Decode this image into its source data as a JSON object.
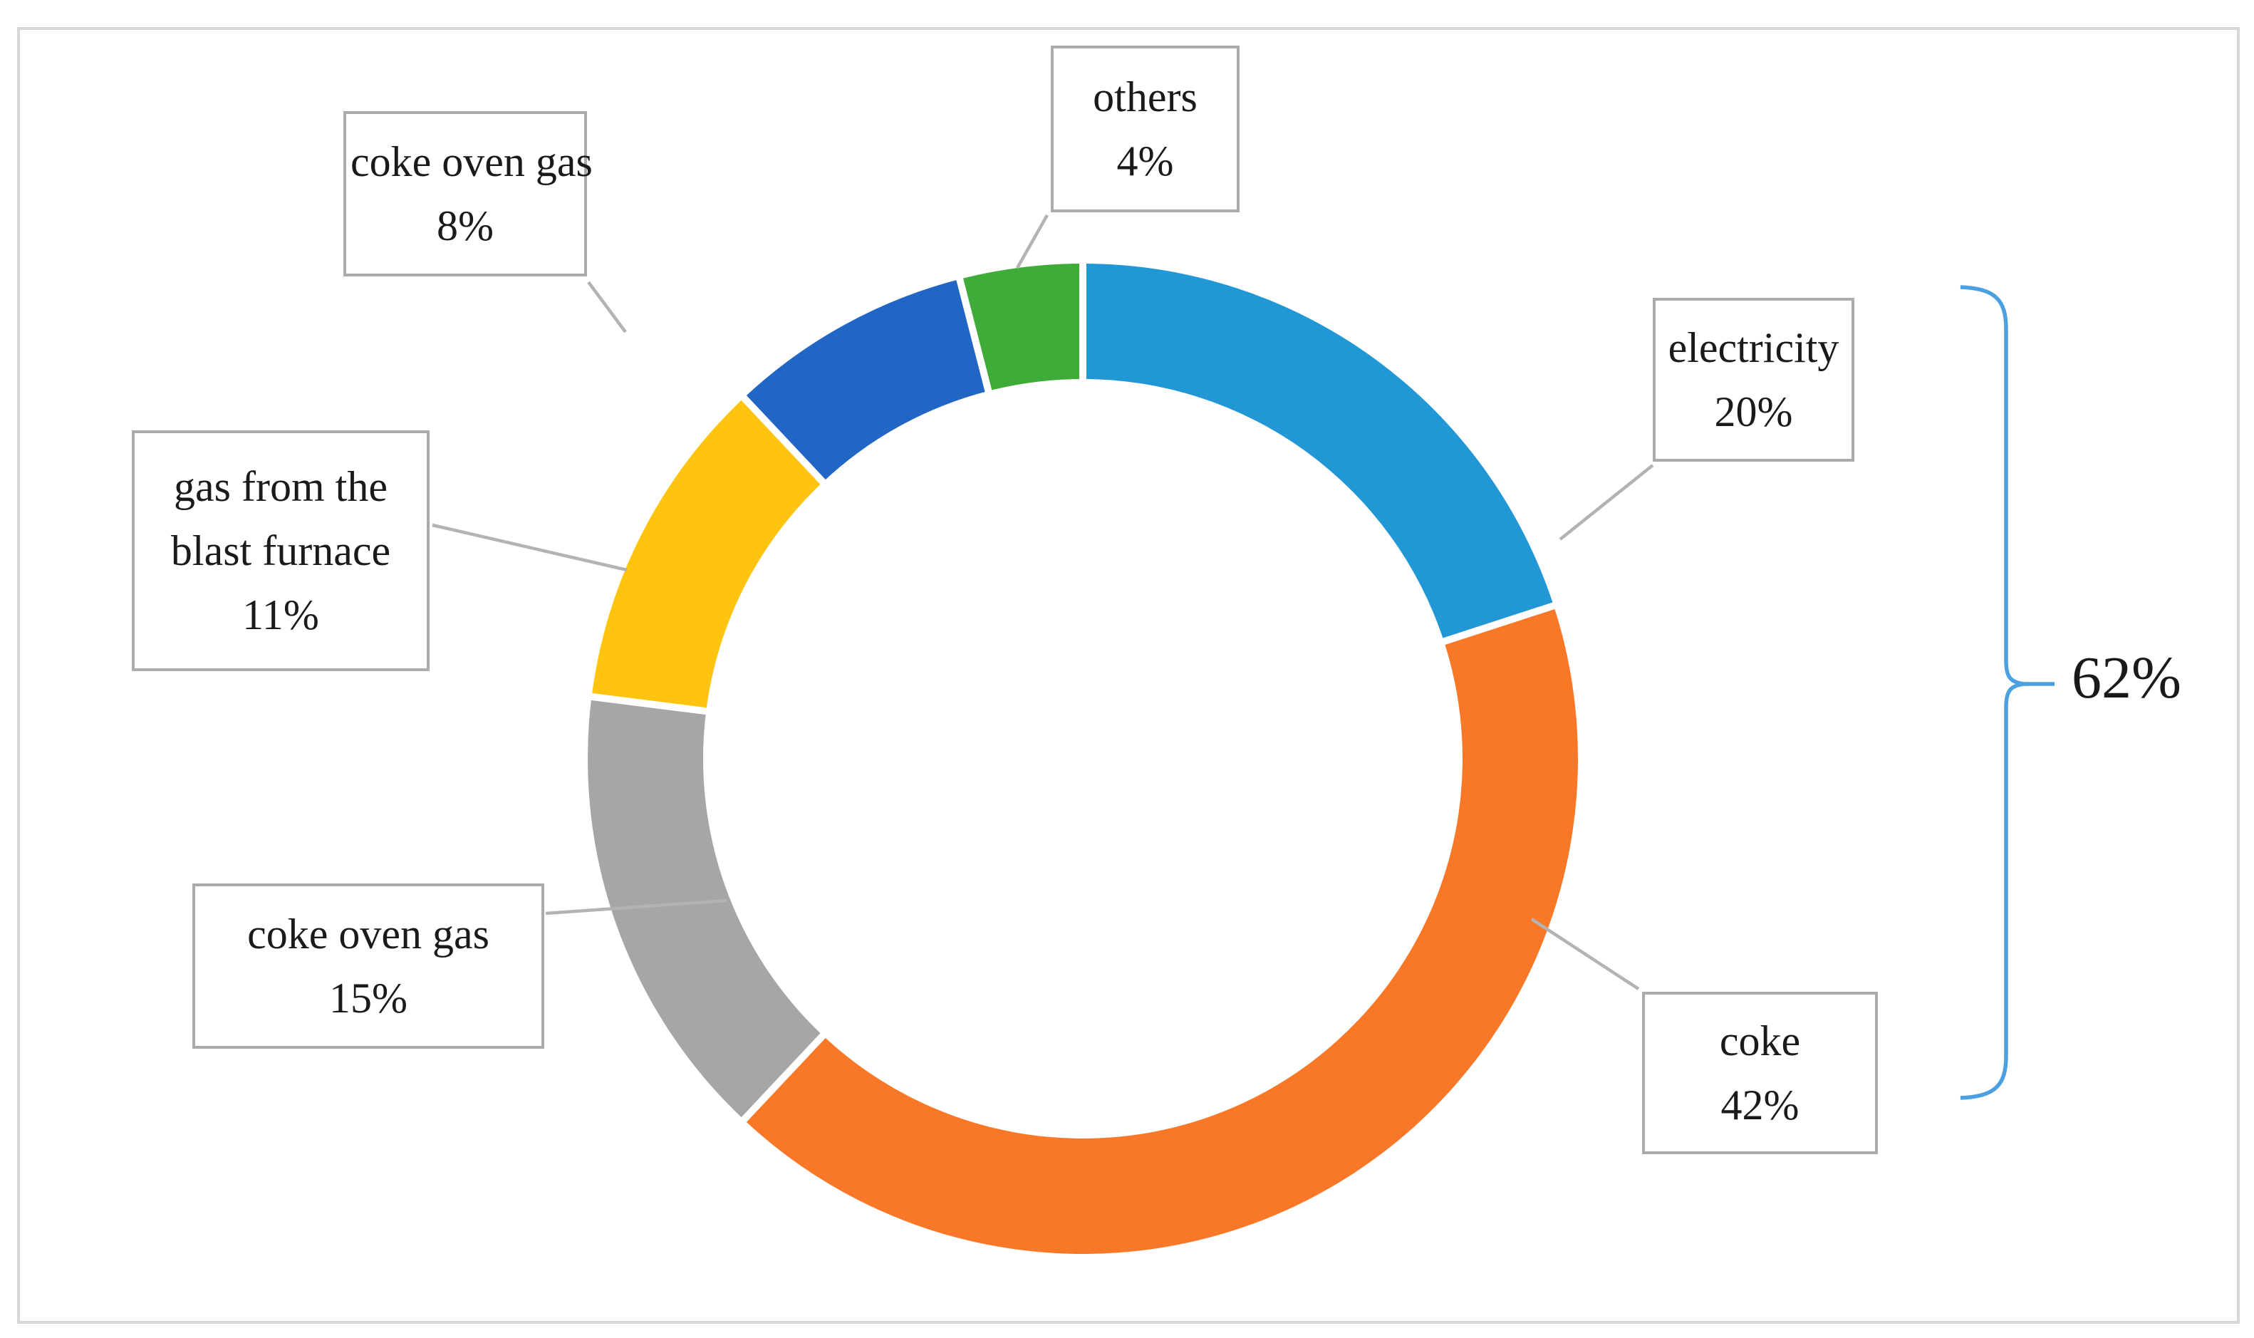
{
  "figure": {
    "description_colors": {
      "frame_border": "#D7D7D7",
      "callout_border": "#ABABAB",
      "leader_line": "#B3B3B3",
      "separator": "#FFFFFF",
      "text": "#1A1A1A"
    }
  },
  "chart_data": {
    "type": "pie",
    "subtype": "donut",
    "title": "",
    "start_angle_deg": 0,
    "direction": "clockwise",
    "hole_ratio": 0.767,
    "categories": [
      "electricity",
      "coke",
      "coke oven gas",
      "gas from the blast furnace",
      "coke oven gas",
      "others"
    ],
    "values": [
      20,
      42,
      15,
      11,
      8,
      4
    ],
    "segments": [
      {
        "label": "electricity",
        "value": 20,
        "percent_label": "20%",
        "color": "#2197D6"
      },
      {
        "label": "coke",
        "value": 42,
        "percent_label": "42%",
        "color": "#F97828"
      },
      {
        "label": "coke oven gas",
        "value": 15,
        "percent_label": "15%",
        "color": "#A6A6A6"
      },
      {
        "label": "gas from the blast furnace",
        "value": 11,
        "percent_label": "11%",
        "color": "#FEC410"
      },
      {
        "label": "coke oven gas",
        "value": 8,
        "percent_label": "8%",
        "color": "#2166C5"
      },
      {
        "label": "others",
        "value": 4,
        "percent_label": "4%",
        "color": "#3FAC39"
      }
    ],
    "annotation": {
      "label": "62%",
      "covers": [
        "electricity",
        "coke"
      ],
      "bracket_color": "#4DA0E0"
    },
    "legend": "none",
    "grid": false
  }
}
